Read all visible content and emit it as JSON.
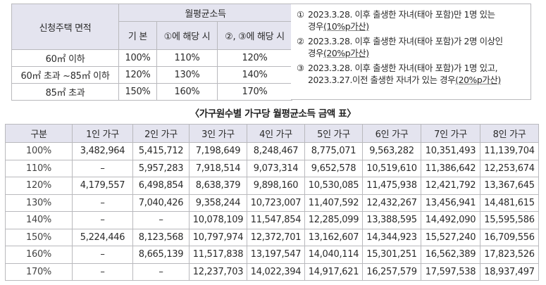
{
  "area_table": {
    "col_area": "신청주택 면적",
    "group_header": "월평균소득",
    "sub_headers": [
      "기 본",
      "①에 해당 시",
      "②, ③에 해당 시"
    ],
    "rows": [
      {
        "area": "60㎡ 이하",
        "values": [
          "100%",
          "110%",
          "120%"
        ]
      },
      {
        "area": "60㎡ 초과 ~85㎡ 이하",
        "values": [
          "120%",
          "130%",
          "140%"
        ]
      },
      {
        "area": "85㎡ 초과",
        "values": [
          "150%",
          "160%",
          "170%"
        ]
      }
    ]
  },
  "notes": [
    {
      "num": "①",
      "line1": "2023.3.28. 이후 출생한 자녀(태아 포함)만 1명 있는",
      "line2_pre": "경우",
      "line2_u": "(10%p가산)"
    },
    {
      "num": "②",
      "line1": "2023.3.28. 이후 출생한 자녀(태아 포함)가 2명 이상인",
      "line2_pre": "경우",
      "line2_u": "(20%p가산)"
    },
    {
      "num": "③",
      "line1": "2023.3.28. 이후 출생한 자녀(태아 포함)가 1명 있고,",
      "line2_pre": "2023.3.27.이전 출생한 자녀가 있는 경우",
      "line2_u": "(20%p가산)"
    }
  ],
  "caption": "〈가구원수별 가구당 월평균소득 금액 표〉",
  "income_table": {
    "headers": [
      "구분",
      "1인 가구",
      "2인 가구",
      "3인 가구",
      "4인 가구",
      "5인 가구",
      "6인 가구",
      "7인 가구",
      "8인 가구"
    ],
    "rows": [
      [
        "100%",
        "3,482,964",
        "5,415,712",
        "7,198,649",
        "8,248,467",
        "8,775,071",
        "9,563,282",
        "10,351,493",
        "11,139,704"
      ],
      [
        "110%",
        "–",
        "5,957,283",
        "7,918,514",
        "9,073,314",
        "9,652,578",
        "10,519,610",
        "11,386,642",
        "12,253,674"
      ],
      [
        "120%",
        "4,179,557",
        "6,498,854",
        "8,638,379",
        "9,898,160",
        "10,530,085",
        "11,475,938",
        "12,421,792",
        "13,367,645"
      ],
      [
        "130%",
        "–",
        "7,040,426",
        "9,358,244",
        "10,723,007",
        "11,407,592",
        "12,432,267",
        "13,456,941",
        "14,481,615"
      ],
      [
        "140%",
        "–",
        "–",
        "10,078,109",
        "11,547,854",
        "12,285,099",
        "13,388,595",
        "14,492,090",
        "15,595,586"
      ],
      [
        "150%",
        "5,224,446",
        "8,123,568",
        "10,797,974",
        "12,372,701",
        "13,162,607",
        "14,344,923",
        "15,527,240",
        "16,709,556"
      ],
      [
        "160%",
        "–",
        "8,665,139",
        "11,517,838",
        "13,197,547",
        "14,040,114",
        "15,301,251",
        "16,562,389",
        "17,823,526"
      ],
      [
        "170%",
        "–",
        "–",
        "12,237,703",
        "14,022,394",
        "14,917,621",
        "16,257,579",
        "17,597,538",
        "18,937,497"
      ]
    ]
  },
  "colors": {
    "header_bg": "#e4e4ef",
    "border": "#b9b9bd",
    "text": "#2a2a2a"
  }
}
